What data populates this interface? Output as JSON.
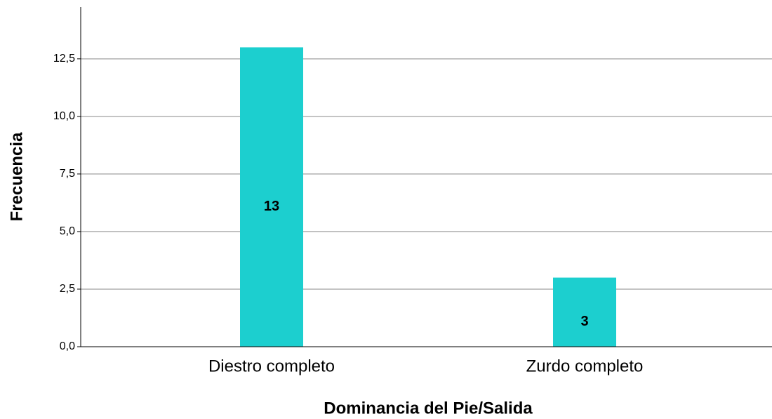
{
  "chart_data": {
    "type": "bar",
    "x_label": "Dominancia del Pie/Salida",
    "y_label": "Frecuencia",
    "categories": [
      "Diestro completo",
      "Zurdo completo"
    ],
    "values": [
      13,
      3
    ],
    "color": "#1ccfcf",
    "ylim": [
      0,
      14.75
    ],
    "yticks": [
      {
        "value": 0,
        "label": "0,0"
      },
      {
        "value": 2.5,
        "label": "2,5"
      },
      {
        "value": 5,
        "label": "5,0"
      },
      {
        "value": 7.5,
        "label": "7,5"
      },
      {
        "value": 10,
        "label": "10,0"
      },
      {
        "value": 12.5,
        "label": "12,5"
      }
    ],
    "grid": true
  }
}
